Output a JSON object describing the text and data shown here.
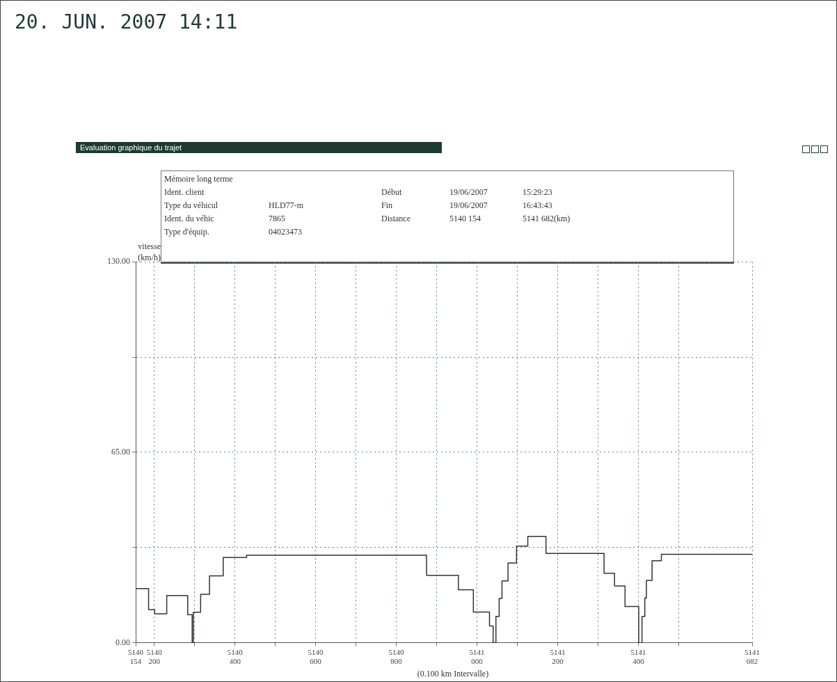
{
  "chart_data": {
    "type": "step",
    "title": "Evaluation graphique du trajet",
    "subtitle": "20. JUN. 2007 14:11",
    "xlabel": "(0.100 km Intervalle)",
    "ylabel": "vitesse (km/h)",
    "annotations": [
      "Mémoire long terme",
      "Ident. client",
      "Type du véhicul",
      "HLD77-m",
      "Ident. du véhic",
      "7865",
      "Type d'équip.",
      "04023473",
      "Début",
      "19/06/2007",
      "15:29:23",
      "Fin",
      "19/06/2007",
      "16:43:43",
      "Distance",
      "5140 154",
      "5141 682(km)"
    ],
    "x": [
      5140154,
      5140186,
      5140201,
      5140231,
      5140283,
      5140294,
      5140297,
      5140315,
      5140337,
      5140371,
      5140429,
      5140875,
      5140954,
      5140991,
      5141031,
      5141040,
      5141047,
      5141055,
      5141062,
      5141077,
      5141098,
      5141126,
      5141171,
      5141315,
      5141341,
      5141367,
      5141401,
      5141409,
      5141416,
      5141420,
      5141434,
      5141457,
      5141504,
      5141617,
      5141682
    ],
    "values": [
      18.5,
      11.3,
      9.9,
      16.1,
      9.6,
      0,
      10.4,
      16.5,
      22.8,
      29.1,
      29.9,
      23.0,
      18.1,
      10.5,
      5.7,
      0,
      9.0,
      15.1,
      21.1,
      27.2,
      33.0,
      36.3,
      30.5,
      23.7,
      19.4,
      12.4,
      0,
      9.0,
      15.3,
      21.3,
      28.0,
      30.2,
      30.2,
      30.2,
      30.2
    ],
    "color": "#333333",
    "marker": "none",
    "line_style": "solid",
    "grid": true,
    "xlim": [
      5140154,
      5141682
    ],
    "xticks": [
      {
        "value": 5140154,
        "label": "5140 154"
      },
      {
        "value": 5140200,
        "label": "5140 200"
      },
      {
        "value": 5140300,
        "label": null
      },
      {
        "value": 5140400,
        "label": "5140 400"
      },
      {
        "value": 5140500,
        "label": null
      },
      {
        "value": 5140600,
        "label": "5140 600"
      },
      {
        "value": 5140700,
        "label": null
      },
      {
        "value": 5140800,
        "label": "5140 800"
      },
      {
        "value": 5140900,
        "label": null
      },
      {
        "value": 5141000,
        "label": "5141 000"
      },
      {
        "value": 5141100,
        "label": null
      },
      {
        "value": 5141200,
        "label": "5141 200"
      },
      {
        "value": 5141300,
        "label": null
      },
      {
        "value": 5141400,
        "label": "5141 400"
      },
      {
        "value": 5141500,
        "label": null
      },
      {
        "value": 5141682,
        "label": "5141 682"
      }
    ],
    "ylim": [
      0,
      130
    ],
    "yticks": [
      {
        "value": 0,
        "label": "0.00"
      },
      {
        "value": 32.5,
        "label": null
      },
      {
        "value": 65,
        "label": "65.00"
      },
      {
        "value": 97.5,
        "label": null
      },
      {
        "value": 130,
        "label": "130.00"
      }
    ]
  }
}
